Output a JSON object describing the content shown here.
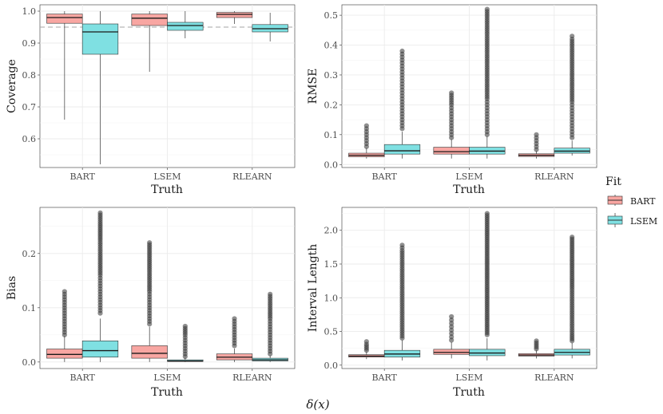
{
  "figure_label": "δ(x)",
  "legend": {
    "title": "Fit",
    "items": [
      {
        "label": "BART",
        "color": "#F8A6A2"
      },
      {
        "label": "LSEM",
        "color": "#7FE0E2"
      }
    ]
  },
  "chart_data": [
    {
      "type": "boxplot",
      "title": "",
      "xlabel": "Truth",
      "ylabel": "Coverage",
      "categories": [
        "BART",
        "LSEM",
        "RLEARN"
      ],
      "ylim": [
        0.51,
        1.02
      ],
      "yticks": [
        0.6,
        0.7,
        0.8,
        0.9,
        1.0
      ],
      "ytick_labels": [
        "0.6",
        "0.7",
        "0.8",
        "0.9",
        "1.0"
      ],
      "reference_line": 0.95,
      "series": [
        {
          "name": "BART",
          "boxes": [
            {
              "category": "BART",
              "min": 0.66,
              "q1": 0.962,
              "median": 0.98,
              "q3": 0.991,
              "max": 1.0,
              "outliers": []
            },
            {
              "category": "LSEM",
              "min": 0.81,
              "q1": 0.955,
              "median": 0.978,
              "q3": 0.991,
              "max": 1.0,
              "outliers": []
            },
            {
              "category": "RLEARN",
              "min": 0.96,
              "q1": 0.98,
              "median": 0.99,
              "q3": 0.996,
              "max": 1.0,
              "outliers": []
            }
          ]
        },
        {
          "name": "LSEM",
          "boxes": [
            {
              "category": "BART",
              "min": 0.52,
              "q1": 0.865,
              "median": 0.935,
              "q3": 0.96,
              "max": 1.0,
              "outliers": []
            },
            {
              "category": "LSEM",
              "min": 0.915,
              "q1": 0.94,
              "median": 0.955,
              "q3": 0.965,
              "max": 1.0,
              "outliers": []
            },
            {
              "category": "RLEARN",
              "min": 0.905,
              "q1": 0.935,
              "median": 0.945,
              "q3": 0.958,
              "max": 0.995,
              "outliers": []
            }
          ]
        }
      ]
    },
    {
      "type": "boxplot",
      "title": "",
      "xlabel": "Truth",
      "ylabel": "RMSE",
      "categories": [
        "BART",
        "LSEM",
        "RLEARN"
      ],
      "ylim": [
        -0.01,
        0.535
      ],
      "yticks": [
        0.0,
        0.1,
        0.2,
        0.3,
        0.4,
        0.5
      ],
      "ytick_labels": [
        "0.0",
        "0.1",
        "0.2",
        "0.3",
        "0.4",
        "0.5"
      ],
      "series": [
        {
          "name": "BART",
          "boxes": [
            {
              "category": "BART",
              "min": 0.02,
              "q1": 0.026,
              "median": 0.031,
              "q3": 0.038,
              "max": 0.055,
              "outliers": [
                0.06,
                0.07,
                0.08,
                0.09,
                0.1,
                0.11,
                0.12,
                0.13
              ]
            },
            {
              "category": "LSEM",
              "min": 0.02,
              "q1": 0.035,
              "median": 0.043,
              "q3": 0.058,
              "max": 0.085,
              "outliers": [
                0.09,
                0.1,
                0.11,
                0.12,
                0.13,
                0.14,
                0.15,
                0.17,
                0.19,
                0.2,
                0.24
              ]
            },
            {
              "category": "RLEARN",
              "min": 0.02,
              "q1": 0.027,
              "median": 0.031,
              "q3": 0.036,
              "max": 0.045,
              "outliers": [
                0.05,
                0.06,
                0.07,
                0.08,
                0.09,
                0.1
              ]
            }
          ]
        },
        {
          "name": "LSEM",
          "boxes": [
            {
              "category": "BART",
              "min": 0.02,
              "q1": 0.035,
              "median": 0.046,
              "q3": 0.067,
              "max": 0.11,
              "outliers": [
                0.12,
                0.14,
                0.16,
                0.18,
                0.2,
                0.22,
                0.24,
                0.26,
                0.28,
                0.3,
                0.32,
                0.34,
                0.36,
                0.38
              ]
            },
            {
              "category": "LSEM",
              "min": 0.02,
              "q1": 0.035,
              "median": 0.045,
              "q3": 0.058,
              "max": 0.095,
              "outliers": [
                0.1,
                0.12,
                0.14,
                0.16,
                0.18,
                0.2,
                0.22,
                0.25,
                0.28,
                0.31,
                0.34,
                0.37,
                0.4,
                0.43,
                0.46,
                0.49,
                0.52
              ]
            },
            {
              "category": "RLEARN",
              "min": 0.03,
              "q1": 0.038,
              "median": 0.045,
              "q3": 0.055,
              "max": 0.08,
              "outliers": [
                0.09,
                0.11,
                0.13,
                0.15,
                0.17,
                0.19,
                0.21,
                0.24,
                0.27,
                0.3,
                0.33,
                0.36,
                0.39,
                0.42,
                0.43
              ]
            }
          ]
        }
      ]
    },
    {
      "type": "boxplot",
      "title": "",
      "xlabel": "Truth",
      "ylabel": "Bias",
      "categories": [
        "BART",
        "LSEM",
        "RLEARN"
      ],
      "ylim": [
        -0.012,
        0.285
      ],
      "yticks": [
        0.0,
        0.1,
        0.2
      ],
      "ytick_labels": [
        "0.0",
        "0.1",
        "0.2"
      ],
      "series": [
        {
          "name": "BART",
          "boxes": [
            {
              "category": "BART",
              "min": 0.0,
              "q1": 0.007,
              "median": 0.014,
              "q3": 0.024,
              "max": 0.048,
              "outliers": [
                0.05,
                0.06,
                0.07,
                0.08,
                0.09,
                0.1,
                0.11,
                0.12,
                0.13
              ]
            },
            {
              "category": "LSEM",
              "min": 0.0,
              "q1": 0.007,
              "median": 0.016,
              "q3": 0.03,
              "max": 0.065,
              "outliers": [
                0.07,
                0.08,
                0.09,
                0.1,
                0.11,
                0.12,
                0.13,
                0.15,
                0.17,
                0.22
              ]
            },
            {
              "category": "RLEARN",
              "min": 0.0,
              "q1": 0.004,
              "median": 0.009,
              "q3": 0.015,
              "max": 0.025,
              "outliers": [
                0.03,
                0.04,
                0.05,
                0.06,
                0.07,
                0.08
              ]
            }
          ]
        },
        {
          "name": "LSEM",
          "boxes": [
            {
              "category": "BART",
              "min": 0.0,
              "q1": 0.009,
              "median": 0.021,
              "q3": 0.039,
              "max": 0.08,
              "outliers": [
                0.09,
                0.1,
                0.11,
                0.12,
                0.13,
                0.14,
                0.15,
                0.16,
                0.18,
                0.2,
                0.225,
                0.255,
                0.275
              ]
            },
            {
              "category": "LSEM",
              "min": 0.0,
              "q1": 0.001,
              "median": 0.002,
              "q3": 0.004,
              "max": 0.008,
              "outliers": [
                0.01,
                0.015,
                0.02,
                0.025,
                0.03,
                0.035,
                0.04,
                0.05,
                0.058,
                0.066
              ]
            },
            {
              "category": "RLEARN",
              "min": 0.0,
              "q1": 0.002,
              "median": 0.004,
              "q3": 0.007,
              "max": 0.012,
              "outliers": [
                0.015,
                0.02,
                0.03,
                0.04,
                0.05,
                0.06,
                0.07,
                0.08,
                0.1,
                0.125
              ]
            }
          ]
        }
      ]
    },
    {
      "type": "boxplot",
      "title": "",
      "xlabel": "Truth",
      "ylabel": "Interval Length",
      "categories": [
        "BART",
        "LSEM",
        "RLEARN"
      ],
      "ylim": [
        -0.05,
        2.34
      ],
      "yticks": [
        0.0,
        0.5,
        1.0,
        1.5,
        2.0
      ],
      "ytick_labels": [
        "0.0",
        "0.5",
        "1.0",
        "1.5",
        "2.0"
      ],
      "series": [
        {
          "name": "BART",
          "boxes": [
            {
              "category": "BART",
              "min": 0.09,
              "q1": 0.12,
              "median": 0.135,
              "q3": 0.155,
              "max": 0.2,
              "outliers": [
                0.22,
                0.25,
                0.28,
                0.31,
                0.35
              ]
            },
            {
              "category": "LSEM",
              "min": 0.1,
              "q1": 0.16,
              "median": 0.19,
              "q3": 0.235,
              "max": 0.34,
              "outliers": [
                0.37,
                0.42,
                0.47,
                0.52,
                0.57,
                0.62,
                0.67,
                0.72
              ]
            },
            {
              "category": "RLEARN",
              "min": 0.1,
              "q1": 0.135,
              "median": 0.15,
              "q3": 0.17,
              "max": 0.22,
              "outliers": [
                0.24,
                0.27,
                0.3,
                0.33,
                0.36
              ]
            }
          ]
        },
        {
          "name": "LSEM",
          "boxes": [
            {
              "category": "BART",
              "min": 0.07,
              "q1": 0.12,
              "median": 0.165,
              "q3": 0.22,
              "max": 0.37,
              "outliers": [
                0.4,
                0.5,
                0.6,
                0.7,
                0.8,
                0.9,
                1.0,
                1.1,
                1.2,
                1.3,
                1.4,
                1.5,
                1.6,
                1.7,
                1.78
              ]
            },
            {
              "category": "LSEM",
              "min": 0.07,
              "q1": 0.14,
              "median": 0.18,
              "q3": 0.235,
              "max": 0.4,
              "outliers": [
                0.45,
                0.6,
                0.75,
                0.9,
                1.05,
                1.2,
                1.35,
                1.5,
                1.65,
                1.8,
                1.95,
                2.1,
                2.25
              ]
            },
            {
              "category": "RLEARN",
              "min": 0.1,
              "q1": 0.15,
              "median": 0.19,
              "q3": 0.235,
              "max": 0.33,
              "outliers": [
                0.36,
                0.45,
                0.55,
                0.65,
                0.75,
                0.85,
                0.95,
                1.05,
                1.15,
                1.3,
                1.45,
                1.6,
                1.75,
                1.9
              ]
            }
          ]
        }
      ]
    }
  ]
}
